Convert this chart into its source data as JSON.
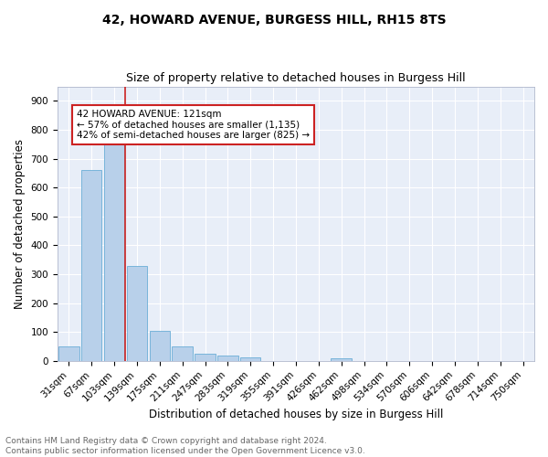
{
  "title1": "42, HOWARD AVENUE, BURGESS HILL, RH15 8TS",
  "title2": "Size of property relative to detached houses in Burgess Hill",
  "xlabel": "Distribution of detached houses by size in Burgess Hill",
  "ylabel": "Number of detached properties",
  "bin_labels": [
    "31sqm",
    "67sqm",
    "103sqm",
    "139sqm",
    "175sqm",
    "211sqm",
    "247sqm",
    "283sqm",
    "319sqm",
    "355sqm",
    "391sqm",
    "426sqm",
    "462sqm",
    "498sqm",
    "534sqm",
    "570sqm",
    "606sqm",
    "642sqm",
    "678sqm",
    "714sqm",
    "750sqm"
  ],
  "bar_values": [
    50,
    660,
    750,
    330,
    103,
    50,
    25,
    17,
    12,
    0,
    0,
    0,
    10,
    0,
    0,
    0,
    0,
    0,
    0,
    0,
    0
  ],
  "bar_color": "#b8d0ea",
  "bar_edge_color": "#6aaed6",
  "vline_x": 2.5,
  "vline_color": "#cc2222",
  "annotation_text": "42 HOWARD AVENUE: 121sqm\n← 57% of detached houses are smaller (1,135)\n42% of semi-detached houses are larger (825) →",
  "annotation_box_color": "#ffffff",
  "annotation_box_edge_color": "#cc2222",
  "ylim": [
    0,
    950
  ],
  "yticks": [
    0,
    100,
    200,
    300,
    400,
    500,
    600,
    700,
    800,
    900
  ],
  "background_color": "#e8eef8",
  "footer_text": "Contains HM Land Registry data © Crown copyright and database right 2024.\nContains public sector information licensed under the Open Government Licence v3.0.",
  "title1_fontsize": 10,
  "title2_fontsize": 9,
  "xlabel_fontsize": 8.5,
  "ylabel_fontsize": 8.5,
  "tick_fontsize": 7.5,
  "annotation_fontsize": 7.5,
  "footer_fontsize": 6.5
}
